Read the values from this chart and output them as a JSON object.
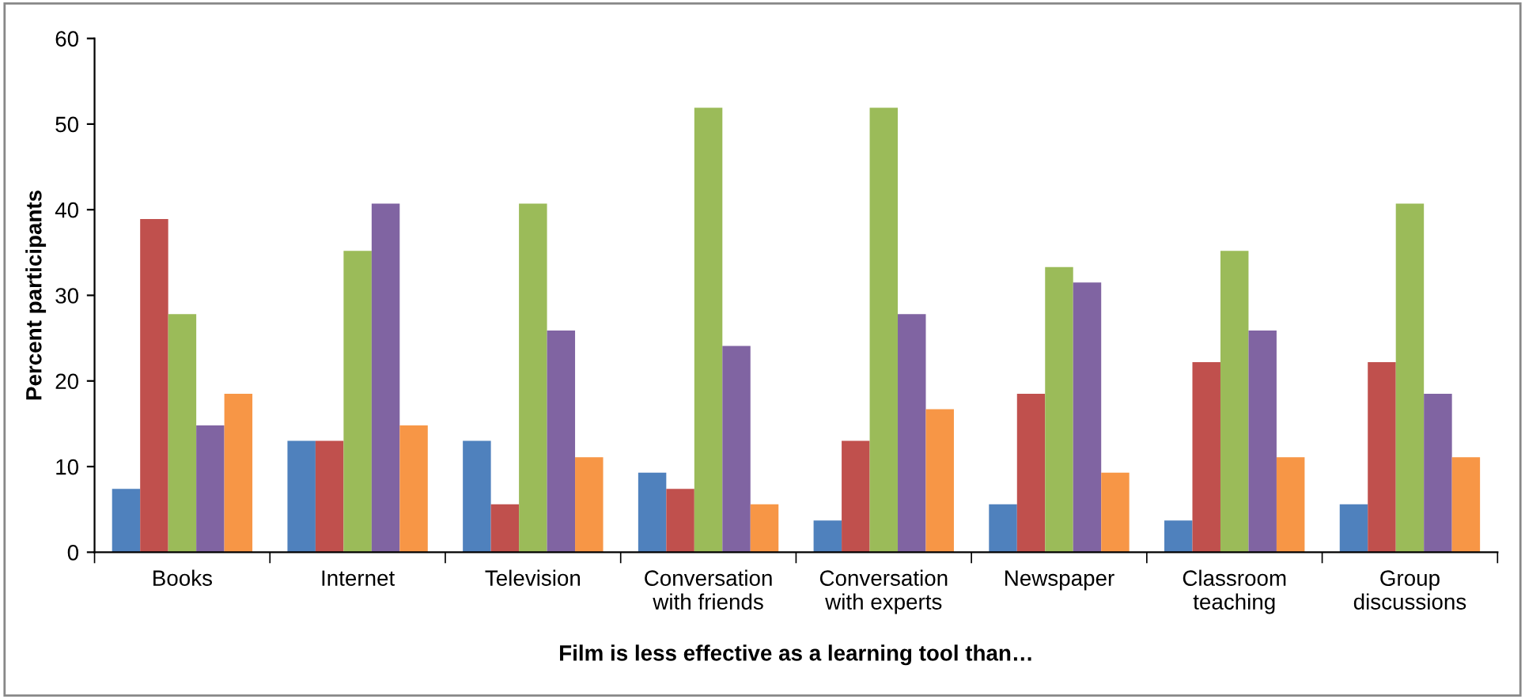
{
  "chart_data": {
    "type": "bar",
    "xlabel": "Film is less effective as a learning tool than…",
    "ylabel": "Percent participants",
    "categories": [
      "Books",
      "Internet",
      "Television",
      "Conversation\nwith friends",
      "Conversation\nwith experts",
      "Newspaper",
      "Classroom\nteaching",
      "Group\ndiscussions"
    ],
    "series": [
      {
        "color": "#4f81bd",
        "values": [
          7.4,
          13,
          13,
          9.3,
          3.7,
          5.6,
          3.7,
          5.6
        ]
      },
      {
        "color": "#c0504d",
        "values": [
          38.9,
          13,
          5.6,
          7.4,
          13,
          18.5,
          22.2,
          22.2
        ]
      },
      {
        "color": "#9bbb59",
        "values": [
          27.8,
          35.2,
          40.7,
          51.9,
          51.9,
          33.3,
          35.2,
          40.7
        ]
      },
      {
        "color": "#8064a2",
        "values": [
          14.8,
          40.7,
          25.9,
          24.1,
          27.8,
          31.5,
          25.9,
          18.5
        ]
      },
      {
        "color": "#f79646",
        "values": [
          18.5,
          14.8,
          11.1,
          5.6,
          16.7,
          9.3,
          11.1,
          11.1
        ]
      }
    ],
    "ylim": [
      0,
      60
    ],
    "yticks": [
      0,
      10,
      20,
      30,
      40,
      50,
      60
    ],
    "grid": false,
    "legend": false
  }
}
